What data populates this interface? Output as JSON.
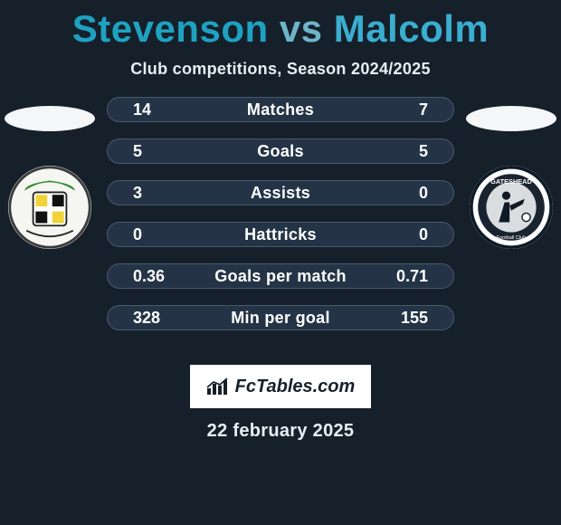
{
  "title": {
    "player1": "Stevenson",
    "vs": "vs",
    "player2": "Malcolm",
    "color_p1": "#1fa2c1",
    "color_vs": "#6fb4c9",
    "color_p2": "#3baed0"
  },
  "subtitle": "Club competitions, Season 2024/2025",
  "silhouette_color": "#f4f6f7",
  "stats": {
    "pill_bg": "#243446",
    "pill_border": "#4a5a6c",
    "rows": [
      {
        "label": "Matches",
        "left": "14",
        "right": "7"
      },
      {
        "label": "Goals",
        "left": "5",
        "right": "5"
      },
      {
        "label": "Assists",
        "left": "3",
        "right": "0"
      },
      {
        "label": "Hattricks",
        "left": "0",
        "right": "0"
      },
      {
        "label": "Goals per match",
        "left": "0.36",
        "right": "0.71"
      },
      {
        "label": "Min per goal",
        "left": "328",
        "right": "155"
      }
    ]
  },
  "crests": {
    "left_alt": "solihull-moors-crest",
    "right_alt": "gateshead-crest"
  },
  "brand": "FcTables.com",
  "date": "22 february 2025"
}
